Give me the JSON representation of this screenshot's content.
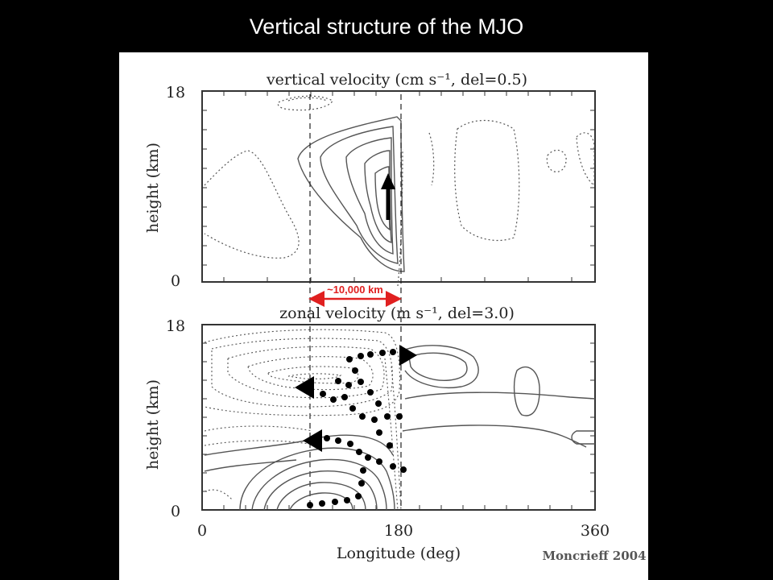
{
  "slide": {
    "title": "Vertical structure of the MJO",
    "credit": "Moncrieff 2004"
  },
  "top_panel": {
    "title": "vertical velocity (cm s⁻¹, del=0.5)",
    "ylabel": "height (km)",
    "y_ticks": [
      "0",
      "18"
    ]
  },
  "bottom_panel": {
    "title": "zonal velocity (m s⁻¹, del=3.0)",
    "ylabel": "height (km)",
    "y_ticks": [
      "0",
      "18"
    ],
    "xlabel": "Longitude (deg)",
    "x_ticks": [
      "0",
      "180",
      "360"
    ]
  },
  "annotations": {
    "scale_label": "~10,000 km",
    "scale_color": "#e02020"
  },
  "icons": [
    "up-arrow-icon",
    "left-arrow-icon",
    "right-arrow-icon"
  ]
}
